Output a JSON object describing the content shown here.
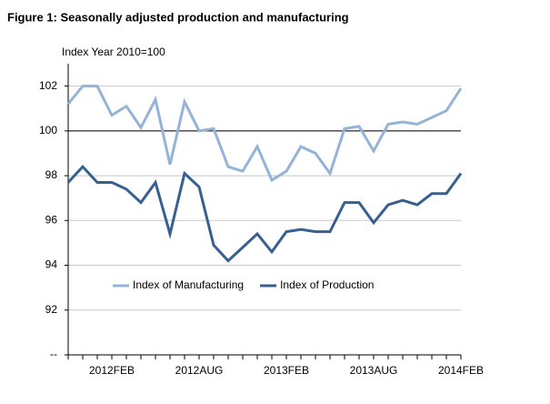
{
  "chart_data": {
    "type": "line",
    "title": "Figure 1: Seasonally adjusted production and manufacturing",
    "y_label": "Index Year 2010=100",
    "categories": [
      null,
      null,
      null,
      "2012FEB",
      null,
      null,
      null,
      null,
      null,
      "2012AUG",
      null,
      null,
      null,
      null,
      null,
      "2013FEB",
      null,
      null,
      null,
      null,
      null,
      "2013AUG",
      null,
      null,
      null,
      null,
      null,
      "2014FEB"
    ],
    "series": [
      {
        "name": "Index of Manufacturing",
        "color": "#95b3d7",
        "values": [
          101.2,
          102.0,
          102.0,
          100.7,
          101.1,
          100.15,
          101.4,
          98.5,
          101.3,
          100.0,
          100.1,
          98.4,
          98.2,
          99.3,
          97.8,
          98.2,
          99.3,
          99.0,
          98.1,
          100.1,
          100.2,
          99.1,
          100.3,
          100.4,
          100.3,
          100.6,
          100.9,
          101.9
        ]
      },
      {
        "name": "Index of Production",
        "color": "#376092",
        "values": [
          97.7,
          98.4,
          97.7,
          97.7,
          97.4,
          96.8,
          97.7,
          95.4,
          98.1,
          97.5,
          94.9,
          94.2,
          94.8,
          95.4,
          94.6,
          95.5,
          95.6,
          95.5,
          95.5,
          96.8,
          96.8,
          95.9,
          96.7,
          96.9,
          96.7,
          97.2,
          97.2,
          98.1
        ]
      }
    ],
    "ylim": [
      90,
      103
    ],
    "yticks": [
      {
        "value": 90,
        "label": "--"
      },
      92,
      94,
      96,
      98,
      100,
      102
    ],
    "reference_line": 100,
    "grid": true,
    "legend": "bottom"
  }
}
